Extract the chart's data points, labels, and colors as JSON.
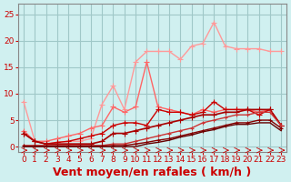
{
  "bg_color": "#d0f0f0",
  "grid_color": "#a0c8c8",
  "xlabel": "Vent moyen/en rafales ( km/h )",
  "xlabel_color": "#cc0000",
  "xlabel_fontsize": 9,
  "title": "",
  "xticks": [
    0,
    1,
    2,
    3,
    4,
    5,
    6,
    7,
    8,
    9,
    10,
    11,
    12,
    13,
    14,
    15,
    16,
    17,
    18,
    19,
    20,
    21,
    22,
    23
  ],
  "yticks": [
    0,
    5,
    10,
    15,
    20,
    25
  ],
  "ylim": [
    -1,
    27
  ],
  "xlim": [
    -0.5,
    23.5
  ],
  "tick_color": "#cc0000",
  "tick_fontsize": 6.5,
  "lines": [
    {
      "x": [
        0,
        1,
        2,
        3,
        4,
        5,
        6,
        7,
        8,
        9,
        10,
        11,
        12,
        13,
        14,
        15,
        16,
        17,
        18,
        19,
        20,
        21,
        22,
        23
      ],
      "y": [
        8.5,
        1.0,
        0.5,
        0.8,
        1.0,
        1.0,
        1.5,
        8.0,
        11.5,
        7.0,
        16.0,
        18.0,
        18.0,
        18.0,
        16.5,
        19.0,
        19.5,
        23.5,
        19.0,
        18.5,
        18.5,
        18.5,
        18.0,
        18.0
      ],
      "color": "#ff9999",
      "lw": 1.0,
      "marker": "+",
      "ms": 4
    },
    {
      "x": [
        0,
        1,
        2,
        3,
        4,
        5,
        6,
        7,
        8,
        9,
        10,
        11,
        12,
        13,
        14,
        15,
        16,
        17,
        18,
        19,
        20,
        21,
        22,
        23
      ],
      "y": [
        3.0,
        1.0,
        1.0,
        1.5,
        2.0,
        2.5,
        3.5,
        4.0,
        7.5,
        6.5,
        7.5,
        16.0,
        7.5,
        7.0,
        6.5,
        6.0,
        7.0,
        6.5,
        7.0,
        7.0,
        7.0,
        6.5,
        7.0,
        4.0
      ],
      "color": "#ff6666",
      "lw": 1.0,
      "marker": "+",
      "ms": 4
    },
    {
      "x": [
        0,
        1,
        2,
        3,
        4,
        5,
        6,
        7,
        8,
        9,
        10,
        11,
        12,
        13,
        14,
        15,
        16,
        17,
        18,
        19,
        20,
        21,
        22,
        23
      ],
      "y": [
        2.5,
        1.0,
        0.5,
        0.8,
        1.0,
        1.5,
        2.0,
        2.5,
        4.0,
        4.5,
        4.5,
        4.0,
        7.0,
        6.5,
        6.5,
        6.0,
        6.5,
        8.5,
        7.0,
        7.0,
        7.0,
        6.0,
        7.0,
        4.0
      ],
      "color": "#cc0000",
      "lw": 1.0,
      "marker": "+",
      "ms": 4
    },
    {
      "x": [
        0,
        1,
        2,
        3,
        4,
        5,
        6,
        7,
        8,
        9,
        10,
        11,
        12,
        13,
        14,
        15,
        16,
        17,
        18,
        19,
        20,
        21,
        22,
        23
      ],
      "y": [
        2.5,
        1.0,
        0.5,
        0.5,
        0.5,
        0.5,
        0.5,
        1.0,
        2.5,
        2.5,
        3.0,
        3.5,
        4.0,
        4.5,
        5.0,
        5.5,
        6.0,
        6.0,
        6.5,
        6.5,
        7.0,
        7.0,
        7.0,
        4.0
      ],
      "color": "#aa0000",
      "lw": 1.2,
      "marker": "+",
      "ms": 4
    },
    {
      "x": [
        0,
        1,
        2,
        3,
        4,
        5,
        6,
        7,
        8,
        9,
        10,
        11,
        12,
        13,
        14,
        15,
        16,
        17,
        18,
        19,
        20,
        21,
        22,
        23
      ],
      "y": [
        0.2,
        0.2,
        0.2,
        0.2,
        0.2,
        0.2,
        0.2,
        0.2,
        0.5,
        0.5,
        1.0,
        1.5,
        2.0,
        2.5,
        3.0,
        3.5,
        4.5,
        5.0,
        5.5,
        6.0,
        6.0,
        6.5,
        6.5,
        4.0
      ],
      "color": "#cc3333",
      "lw": 1.0,
      "marker": "+",
      "ms": 3
    },
    {
      "x": [
        0,
        1,
        2,
        3,
        4,
        5,
        6,
        7,
        8,
        9,
        10,
        11,
        12,
        13,
        14,
        15,
        16,
        17,
        18,
        19,
        20,
        21,
        22,
        23
      ],
      "y": [
        0.1,
        0.1,
        0.1,
        0.1,
        0.1,
        0.1,
        0.1,
        0.1,
        0.2,
        0.2,
        0.5,
        0.8,
        1.2,
        1.5,
        2.0,
        2.5,
        3.0,
        3.5,
        4.0,
        4.5,
        4.5,
        5.0,
        5.0,
        3.5
      ],
      "color": "#880000",
      "lw": 1.0,
      "marker": "+",
      "ms": 3
    },
    {
      "x": [
        0,
        1,
        2,
        3,
        4,
        5,
        6,
        7,
        8,
        9,
        10,
        11,
        12,
        13,
        14,
        15,
        16,
        17,
        18,
        19,
        20,
        21,
        22,
        23
      ],
      "y": [
        0.0,
        0.0,
        0.0,
        0.0,
        0.0,
        0.0,
        0.0,
        0.0,
        0.0,
        0.0,
        0.0,
        0.5,
        0.8,
        1.2,
        1.8,
        2.2,
        2.8,
        3.2,
        3.8,
        4.2,
        4.2,
        4.5,
        4.5,
        3.0
      ],
      "color": "#660000",
      "lw": 1.0,
      "marker": null,
      "ms": 0
    }
  ]
}
